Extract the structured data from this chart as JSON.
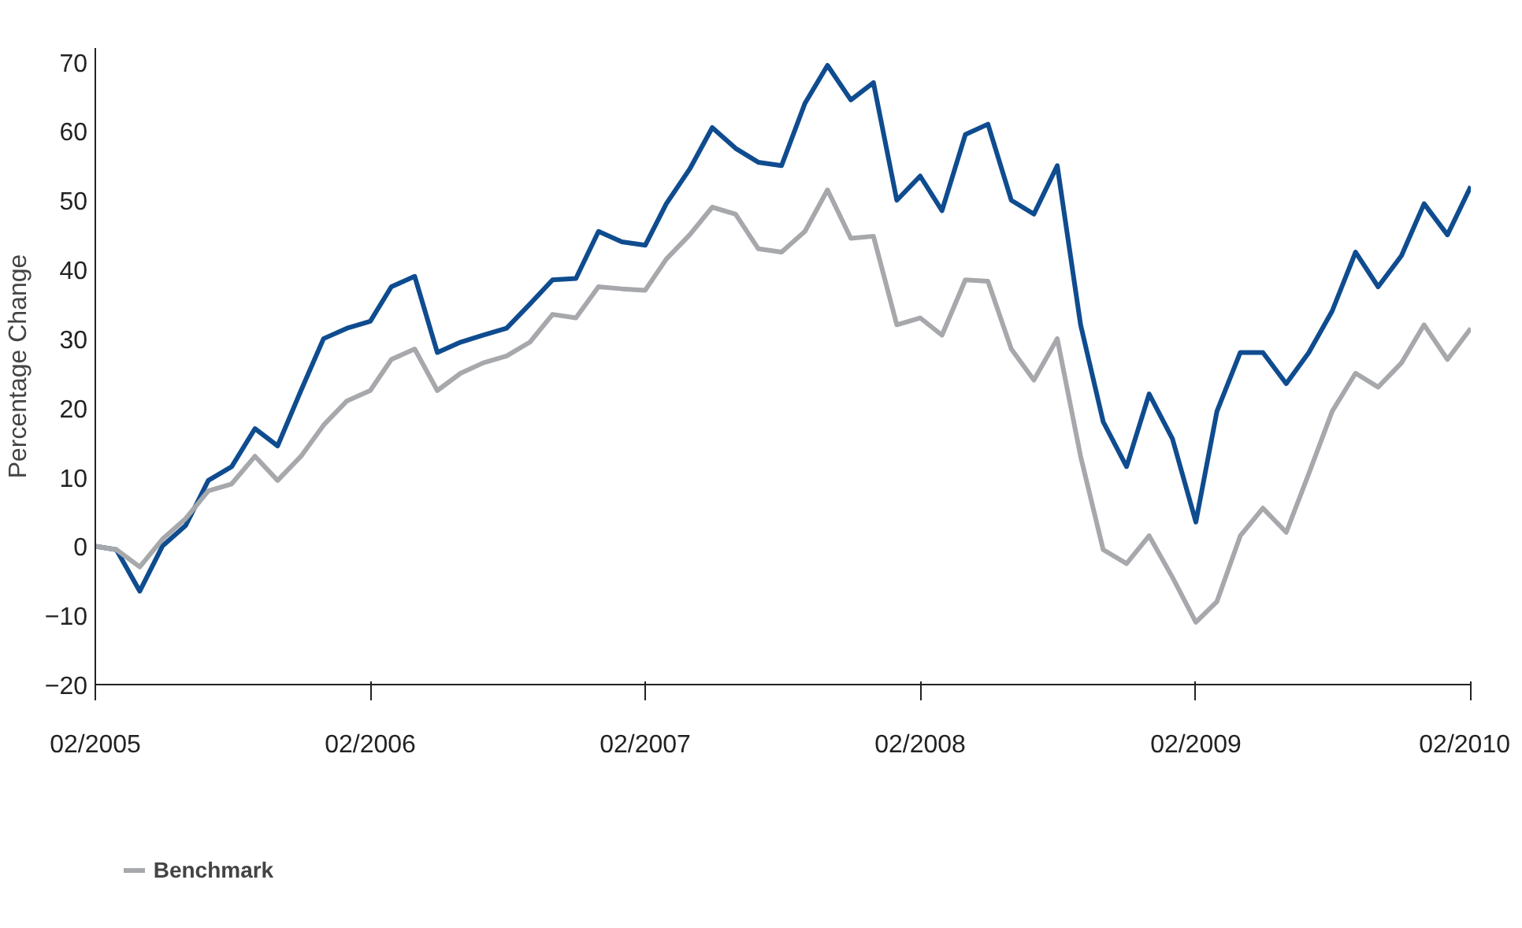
{
  "chart_data": {
    "type": "line",
    "ylabel": "Percentage Change",
    "x": [
      "2005-02",
      "2005-03",
      "2005-04",
      "2005-05",
      "2005-06",
      "2005-07",
      "2005-08",
      "2005-09",
      "2005-10",
      "2005-11",
      "2005-12",
      "2006-01",
      "2006-02",
      "2006-03",
      "2006-04",
      "2006-05",
      "2006-06",
      "2006-07",
      "2006-08",
      "2006-09",
      "2006-10",
      "2006-11",
      "2006-12",
      "2007-01",
      "2007-02",
      "2007-03",
      "2007-04",
      "2007-05",
      "2007-06",
      "2007-07",
      "2007-08",
      "2007-09",
      "2007-10",
      "2007-11",
      "2007-12",
      "2008-01",
      "2008-02",
      "2008-03",
      "2008-04",
      "2008-05",
      "2008-06",
      "2008-07",
      "2008-08",
      "2008-09",
      "2008-10",
      "2008-11",
      "2008-12",
      "2009-01",
      "2009-02",
      "2009-03",
      "2009-04",
      "2009-05",
      "2009-06",
      "2009-07",
      "2009-08",
      "2009-09",
      "2009-10",
      "2009-11",
      "2009-12",
      "2010-01",
      "2010-02"
    ],
    "series": [
      {
        "color": "#0f4c8f",
        "values": [
          0,
          -0.5,
          -6.5,
          0,
          3,
          9.5,
          11.5,
          17,
          14.5,
          22.5,
          30,
          31.5,
          32.5,
          37.5,
          39,
          28,
          29.5,
          30.5,
          31.5,
          35,
          38.5,
          38.7,
          45.5,
          44,
          43.5,
          49.5,
          54.5,
          60.5,
          57.5,
          55.5,
          55,
          64,
          69.5,
          64.5,
          67,
          50,
          53.5,
          48.5,
          59.5,
          61,
          50,
          48,
          55,
          32,
          18,
          11.5,
          22,
          15.5,
          3.5,
          19.5,
          28,
          28,
          23.5,
          28,
          34,
          42.5,
          37.5,
          42,
          49.5,
          45,
          52
        ]
      },
      {
        "name": "Benchmark",
        "color": "#a6a8ab",
        "values": [
          0,
          -0.5,
          -3,
          1,
          4,
          8,
          9,
          13,
          9.5,
          13,
          17.5,
          21,
          22.5,
          27,
          28.5,
          22.5,
          25,
          26.5,
          27.5,
          29.5,
          33.5,
          33,
          37.5,
          37.2,
          37,
          41.5,
          45,
          49,
          48,
          43,
          42.5,
          45.5,
          51.5,
          44.5,
          44.8,
          32,
          33,
          30.5,
          38.5,
          38.3,
          28.5,
          24,
          30,
          13,
          -0.5,
          -2.5,
          1.5,
          -4.5,
          -11,
          -8,
          1.5,
          5.5,
          2,
          10.5,
          19.5,
          25,
          23,
          26.5,
          32,
          27,
          31.5
        ]
      }
    ],
    "xlim": [
      "2005-02",
      "2010-02"
    ],
    "xticks": [
      {
        "value": "2005-02",
        "label": "02/2005"
      },
      {
        "value": "2006-02",
        "label": "02/2006"
      },
      {
        "value": "2007-02",
        "label": "02/2007"
      },
      {
        "value": "2008-02",
        "label": "02/2008"
      },
      {
        "value": "2009-02",
        "label": "02/2009"
      },
      {
        "value": "2010-02",
        "label": "02/2010"
      }
    ],
    "ylim": [
      -20,
      72
    ],
    "yticks": [
      -20,
      -10,
      0,
      10,
      20,
      30,
      40,
      50,
      60,
      70
    ],
    "grid": false,
    "legend": "bottom left",
    "line_style": "solid",
    "marker": "none"
  }
}
